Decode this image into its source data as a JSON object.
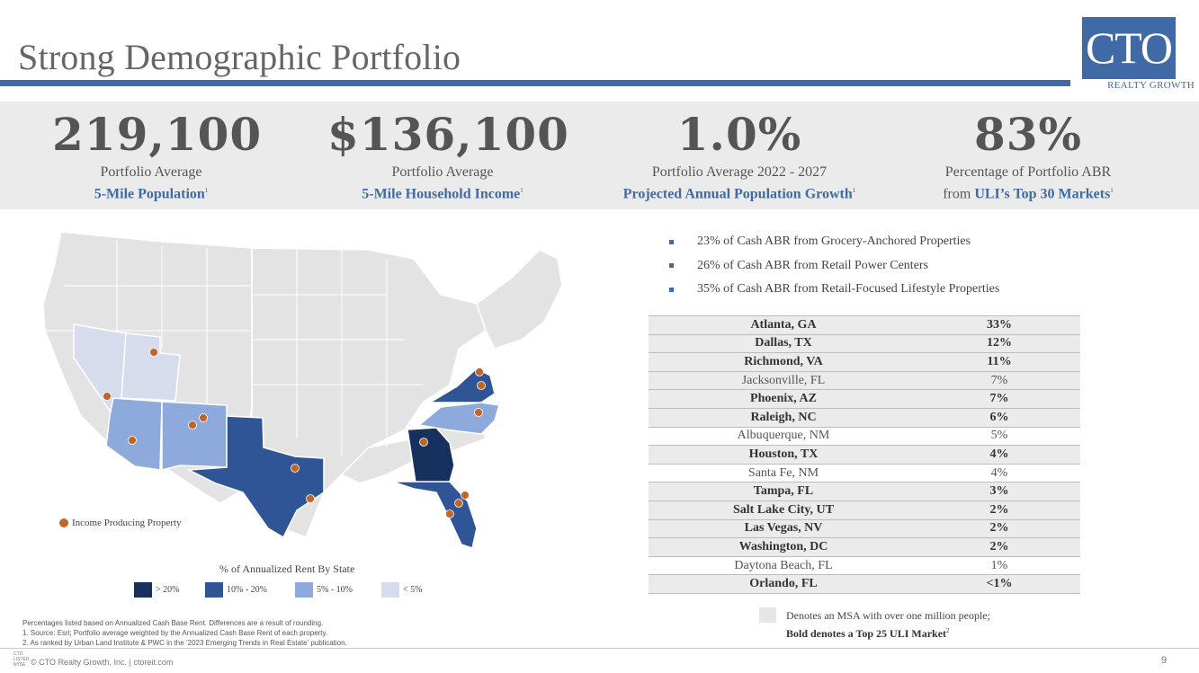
{
  "title": "Strong Demographic Portfolio",
  "logo": {
    "text": "CTO",
    "subtitle": "REALTY GROWTH"
  },
  "stats": [
    {
      "value": "219,100",
      "line1": "Portfolio Average",
      "line2_prefix": "",
      "line2_bold": "5-Mile Population",
      "footnote": "1"
    },
    {
      "value": "$136,100",
      "line1": "Portfolio Average",
      "line2_prefix": "",
      "line2_bold": "5-Mile Household Income",
      "footnote": "1"
    },
    {
      "value": "1.0%",
      "line1": "Portfolio Average 2022 - 2027",
      "line2_prefix": "",
      "line2_bold": "Projected Annual Population Growth",
      "footnote": "1"
    },
    {
      "value": "83%",
      "line1": "Percentage of Portfolio ABR",
      "line2_prefix": "from ",
      "line2_bold": "ULI’s Top 30 Markets",
      "footnote": "1"
    }
  ],
  "map": {
    "legend_property": "Income Producing Property",
    "scale_title": "% of Annualized Rent By State",
    "scale": [
      {
        "label": "> 20%",
        "color": "#17315f"
      },
      {
        "label": "10% - 20%",
        "color": "#2f5597"
      },
      {
        "label": "5% - 10%",
        "color": "#8ea9db"
      },
      {
        "label": "< 5%",
        "color": "#d6dcec"
      }
    ],
    "colors": {
      "base_state": "#e3e3e3",
      "marker": "#c0662a"
    }
  },
  "bullets": [
    "23% of Cash ABR from Grocery-Anchored Properties",
    "26% of Cash ABR from Retail Power Centers",
    "35% of Cash ABR from Retail-Focused Lifestyle Properties"
  ],
  "table": [
    {
      "market": "Atlanta, GA",
      "pct": "33%",
      "bold": true,
      "shaded": true
    },
    {
      "market": "Dallas, TX",
      "pct": "12%",
      "bold": true,
      "shaded": true
    },
    {
      "market": "Richmond, VA",
      "pct": "11%",
      "bold": true,
      "shaded": true
    },
    {
      "market": "Jacksonville, FL",
      "pct": "7%",
      "bold": false,
      "shaded": true
    },
    {
      "market": "Phoenix, AZ",
      "pct": "7%",
      "bold": true,
      "shaded": true
    },
    {
      "market": "Raleigh, NC",
      "pct": "6%",
      "bold": true,
      "shaded": true
    },
    {
      "market": "Albuquerque, NM",
      "pct": "5%",
      "bold": false,
      "shaded": false
    },
    {
      "market": "Houston, TX",
      "pct": "4%",
      "bold": true,
      "shaded": true
    },
    {
      "market": "Santa Fe, NM",
      "pct": "4%",
      "bold": false,
      "shaded": false
    },
    {
      "market": "Tampa, FL",
      "pct": "3%",
      "bold": true,
      "shaded": true
    },
    {
      "market": "Salt Lake City, UT",
      "pct": "2%",
      "bold": true,
      "shaded": true
    },
    {
      "market": "Las Vegas, NV",
      "pct": "2%",
      "bold": true,
      "shaded": true
    },
    {
      "market": "Washington, DC",
      "pct": "2%",
      "bold": true,
      "shaded": true
    },
    {
      "market": "Daytona Beach, FL",
      "pct": "1%",
      "bold": false,
      "shaded": false
    },
    {
      "market": "Orlando, FL",
      "pct": "<1%",
      "bold": true,
      "shaded": true
    }
  ],
  "key": {
    "line1": "Denotes an MSA with over one million people;",
    "line2": "Bold denotes a Top 25 ULI Market",
    "line2_sup": "2"
  },
  "notes": [
    "Percentages listed based on Annualized Cash Base Rent. Differences are a result of rounding.",
    "1.   Source: Esri; Portfolio average weighted by the Annualized Cash Base Rent of each property.",
    "2.   As ranked by Urban Land Institute & PWC in the ‘2023 Emerging Trends in Real Estate’ publication."
  ],
  "footer": {
    "copyright": "© CTO Realty Growth, Inc. | ctoreit.com",
    "ticker_top": "CTO",
    "ticker_mid": "LISTED",
    "ticker_bottom": "NYSE",
    "page": "9"
  }
}
